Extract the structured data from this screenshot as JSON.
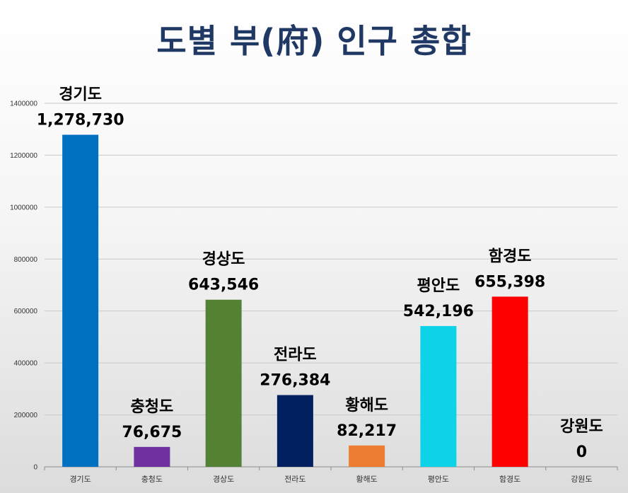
{
  "title": "도별 부(府) 인구 총합",
  "chart_data": {
    "type": "bar",
    "title": "도별 부(府) 인구 총합",
    "xlabel": "",
    "ylabel": "",
    "ylim": [
      0,
      1400000
    ],
    "yticks": [
      "0",
      "200000",
      "400000",
      "600000",
      "800000",
      "1000000",
      "1200000",
      "1400000"
    ],
    "ytick_values": [
      0,
      200000,
      400000,
      600000,
      800000,
      1000000,
      1200000,
      1400000
    ],
    "grid": true,
    "legend": "none",
    "categories": [
      "경기도",
      "충청도",
      "경상도",
      "전라도",
      "황해도",
      "평안도",
      "함경도",
      "강원도"
    ],
    "values": [
      1278730,
      76675,
      643546,
      276384,
      82217,
      542196,
      655398,
      0
    ],
    "value_labels": [
      "1,278,730",
      "76,675",
      "643,546",
      "276,384",
      "82,217",
      "542,196",
      "655,398",
      "0"
    ],
    "colors": [
      "#0070c0",
      "#7030a0",
      "#548235",
      "#002060",
      "#ed7d31",
      "#0dd3e8",
      "#ff0000",
      "#7f7f7f"
    ]
  }
}
